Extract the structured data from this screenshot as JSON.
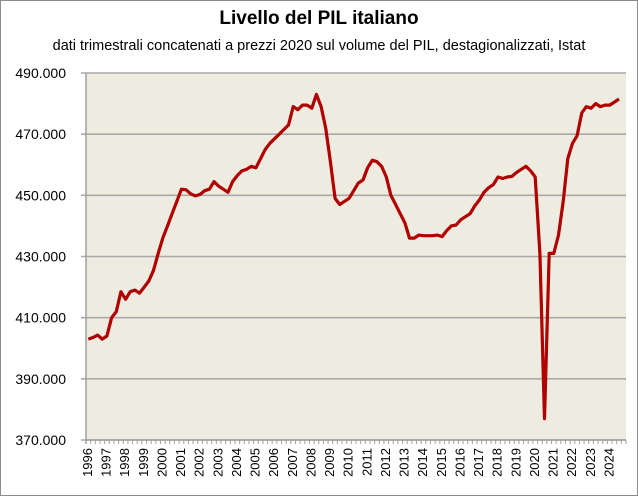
{
  "chart_data": {
    "type": "line",
    "title": "Livello del PIL italiano",
    "subtitle": "dati trimestrali concatenati a prezzi 2020 sul volume del PIL, destagionalizzati, Istat",
    "xlabel": "",
    "ylabel": "",
    "ylim": [
      370000,
      490000
    ],
    "yticks": [
      "370.000",
      "390.000",
      "410.000",
      "430.000",
      "450.000",
      "470.000",
      "490.000"
    ],
    "xticks": [
      "1996",
      "1997",
      "1998",
      "1999",
      "2000",
      "2001",
      "2002",
      "2003",
      "2004",
      "2005",
      "2006",
      "2007",
      "2008",
      "2009",
      "2010",
      "2011",
      "2012",
      "2013",
      "2014",
      "2015",
      "2016",
      "2017",
      "2018",
      "2019",
      "2020",
      "2021",
      "2022",
      "2023",
      "2024"
    ],
    "grid": true,
    "legend": "none",
    "line_color": "#b00000",
    "plot_background": "#eeebe1",
    "frequency": "quarterly",
    "start": "1996 Q1",
    "values": [
      403000,
      403500,
      404300,
      403000,
      404000,
      410000,
      412000,
      418500,
      416000,
      418500,
      419000,
      418000,
      420000,
      422000,
      425500,
      431000,
      436000,
      440000,
      444000,
      448000,
      452000,
      451800,
      450500,
      449800,
      450300,
      451500,
      452000,
      454500,
      453000,
      452000,
      451000,
      454500,
      456500,
      458000,
      458500,
      459500,
      459000,
      462000,
      465000,
      467000,
      468500,
      470000,
      471500,
      473000,
      479000,
      478000,
      479500,
      479500,
      478500,
      483000,
      479000,
      472000,
      461000,
      449000,
      447000,
      448000,
      449000,
      451500,
      454000,
      455000,
      459000,
      461500,
      461000,
      459500,
      456000,
      450000,
      447000,
      444000,
      441000,
      436000,
      436000,
      437000,
      436800,
      436800,
      436800,
      437000,
      436500,
      438500,
      440000,
      440300,
      442000,
      443000,
      444000,
      446500,
      448500,
      451000,
      452500,
      453500,
      456000,
      455500,
      456000,
      456200,
      457500,
      458500,
      459500,
      458000,
      456000,
      431000,
      377000,
      431000,
      431000,
      437000,
      448000,
      462000,
      467000,
      469500,
      477000,
      479000,
      478500,
      480000,
      479000,
      479500,
      479500,
      480500,
      481500
    ]
  }
}
